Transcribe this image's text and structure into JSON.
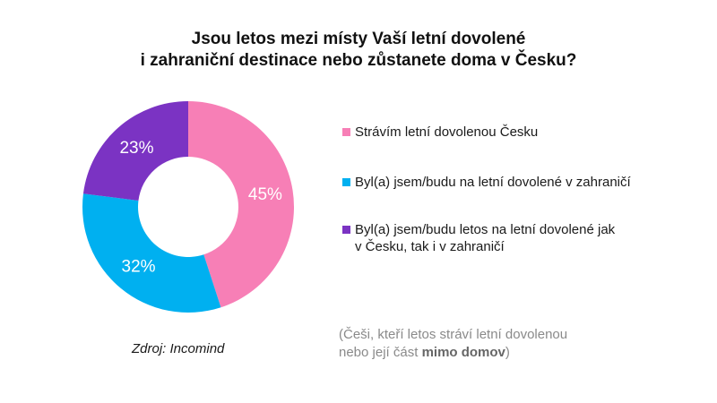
{
  "chart_data": {
    "type": "pie",
    "title_lines": [
      "Jsou letos mezi místy Vaší letní dovolené",
      "i zahraniční destinace nebo zůstanete doma v Česku?"
    ],
    "categories": [
      "Strávím letní dovolenou Česku",
      "Byl(a) jsem/budu na letní dovolené v zahraničí",
      "Byl(a) jsem/budu letos na letní dovolené jak v Česku, tak i v zahraničí"
    ],
    "values": [
      45,
      32,
      23
    ],
    "data_labels": [
      "45%",
      "32%",
      "23%"
    ],
    "colors": [
      "#f77fb6",
      "#00b0f0",
      "#7b33c3"
    ],
    "donut": true,
    "legend_position": "right"
  },
  "legend": {
    "items": [
      {
        "lines": [
          "Strávím letní dovolenou Česku"
        ]
      },
      {
        "lines": [
          "Byl(a) jsem/budu na letní dovolené v zahraničí"
        ]
      },
      {
        "lines": [
          "Byl(a) jsem/budu letos na letní dovolené jak",
          "v Česku, tak i v zahraničí"
        ]
      }
    ]
  },
  "source": "Zdroj: Incomind",
  "note": {
    "line1": "(Češi, kteří letos stráví letní dovolenou",
    "line2_prefix": "nebo její část ",
    "line2_bold": "mimo domov",
    "line2_suffix": ")"
  }
}
